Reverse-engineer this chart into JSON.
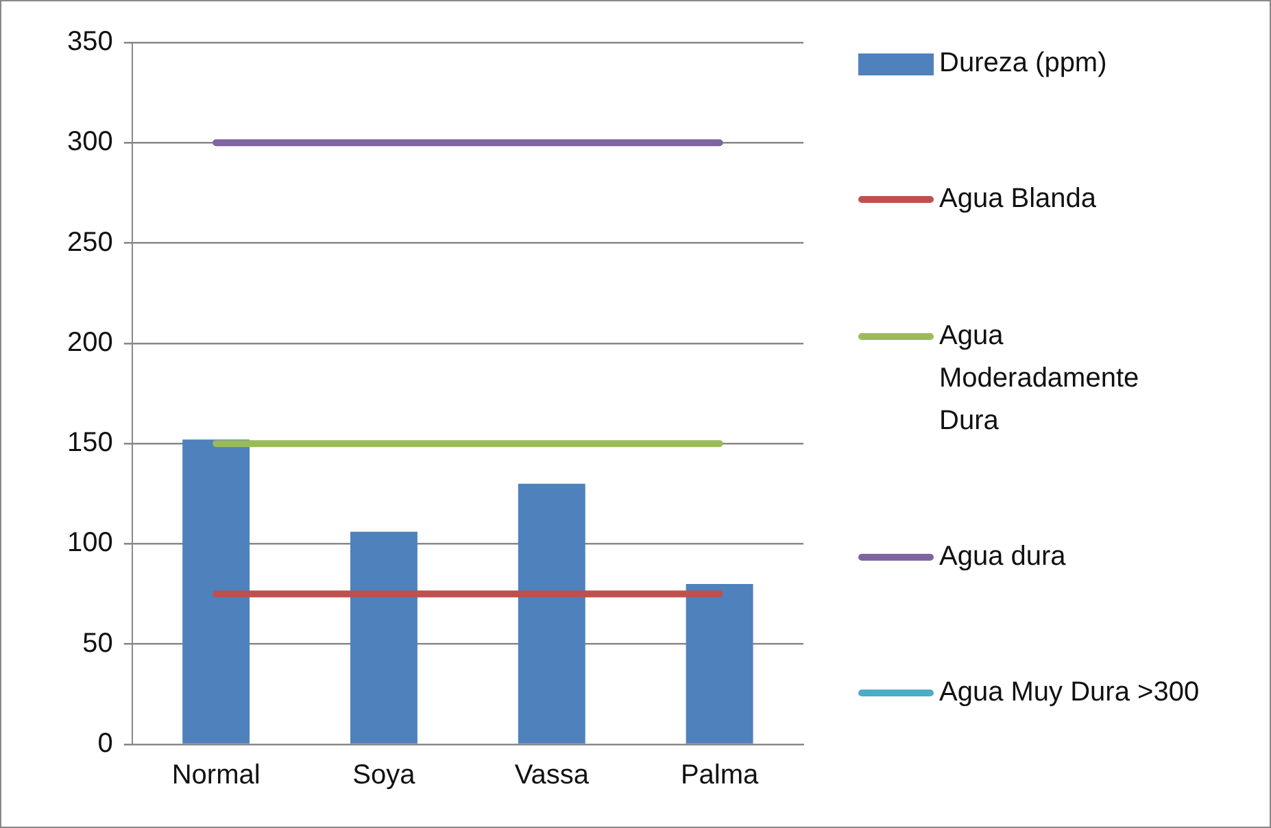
{
  "chart_data": {
    "type": "bar",
    "categories": [
      "Normal",
      "Soya",
      "Vassa",
      "Palma"
    ],
    "series": [
      {
        "name": "Dureza (ppm)",
        "color": "#4f81bd",
        "values": [
          152,
          106,
          130,
          80
        ]
      },
      {
        "name": "Agua Blanda",
        "type": "line",
        "color": "#c0504d",
        "values": [
          75,
          75,
          75,
          75
        ]
      },
      {
        "name": "Agua Moderadamente Dura",
        "type": "line",
        "color": "#9bbb59",
        "values": [
          150,
          150,
          150,
          150
        ]
      },
      {
        "name": "Agua dura",
        "type": "line",
        "color": "#8064a2",
        "values": [
          300,
          300,
          300,
          300
        ]
      },
      {
        "name": "Agua Muy Dura >300",
        "type": "line",
        "color": "#4bacc6",
        "values": [
          null,
          null,
          null,
          null
        ]
      }
    ],
    "ylim": [
      0,
      350
    ],
    "yticks": [
      0,
      50,
      100,
      150,
      200,
      250,
      300,
      350
    ],
    "grid": "y",
    "legend": "right",
    "marker": "none"
  }
}
